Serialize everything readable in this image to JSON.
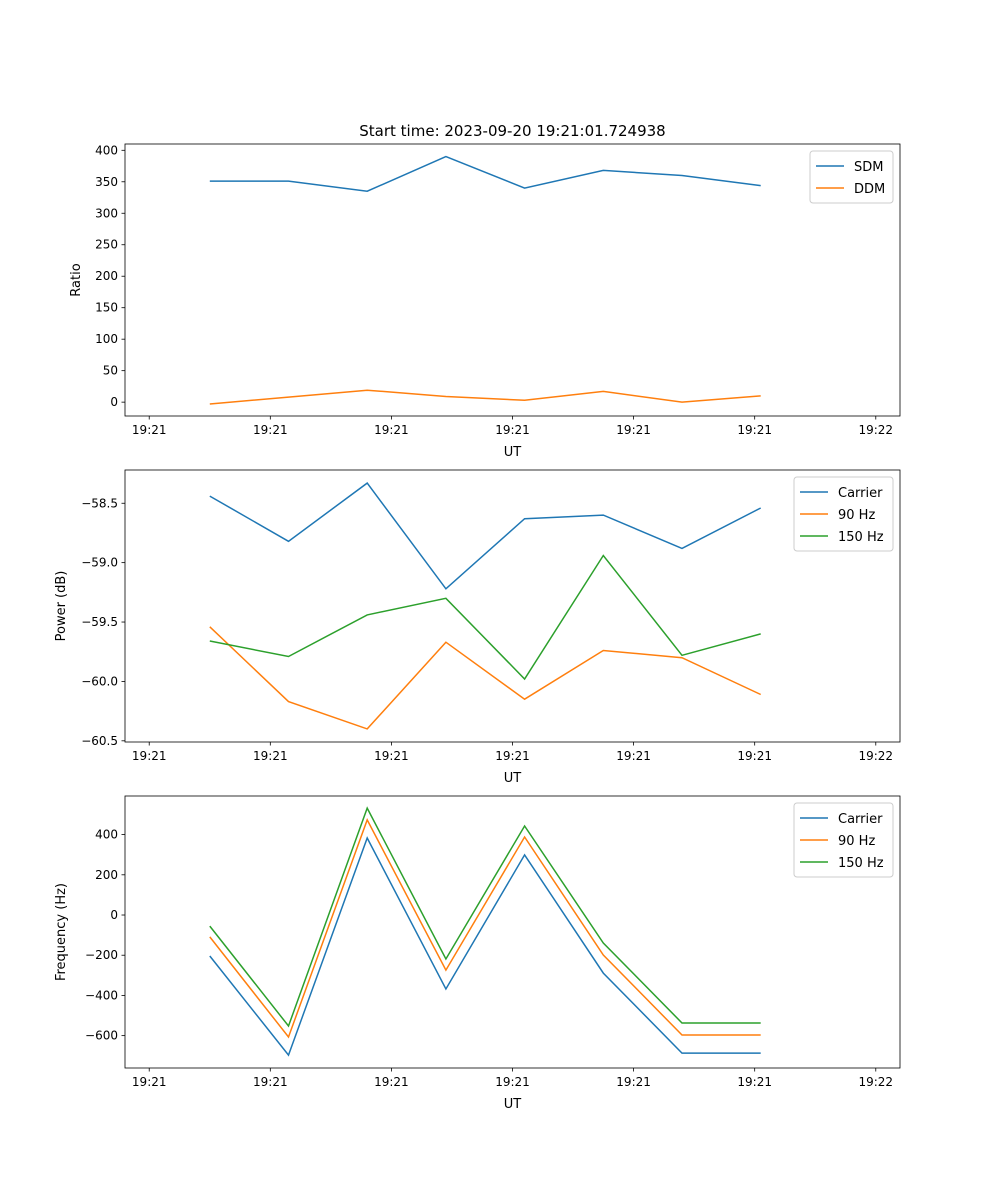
{
  "chart_data": [
    {
      "type": "line",
      "title": "Start time: 2023-09-20 19:21:01.724938",
      "xlabel": "UT",
      "ylabel": "Ratio",
      "x_seconds": [
        5,
        11.5,
        18,
        24.5,
        31,
        37.5,
        44,
        50.5
      ],
      "xlim": [
        -2,
        62
      ],
      "x_ticks": [
        0,
        10,
        20,
        30,
        40,
        50,
        60
      ],
      "x_tick_labels": [
        "19:21",
        "19:21",
        "19:21",
        "19:21",
        "19:21",
        "19:21",
        "19:22"
      ],
      "ylim": [
        -22,
        410
      ],
      "y_ticks": [
        0,
        50,
        100,
        150,
        200,
        250,
        300,
        350,
        400
      ],
      "y_tick_labels": [
        "0",
        "50",
        "100",
        "150",
        "200",
        "250",
        "300",
        "350",
        "400"
      ],
      "legend": "top-right",
      "series": [
        {
          "name": "SDM",
          "color": "#1f77b4",
          "values": [
            351,
            351,
            335,
            390,
            340,
            368,
            360,
            344
          ]
        },
        {
          "name": "DDM",
          "color": "#ff7f0e",
          "values": [
            -3,
            8,
            19,
            9,
            3,
            17,
            0,
            10
          ]
        }
      ]
    },
    {
      "type": "line",
      "xlabel": "UT",
      "ylabel": "Power (dB)",
      "x_seconds": [
        5,
        11.5,
        18,
        24.5,
        31,
        37.5,
        44,
        50.5
      ],
      "xlim": [
        -2,
        62
      ],
      "x_ticks": [
        0,
        10,
        20,
        30,
        40,
        50,
        60
      ],
      "x_tick_labels": [
        "19:21",
        "19:21",
        "19:21",
        "19:21",
        "19:21",
        "19:21",
        "19:22"
      ],
      "ylim": [
        -60.51,
        -58.22
      ],
      "y_ticks": [
        -58.5,
        -59.0,
        -59.5,
        -60.0,
        -60.5
      ],
      "y_tick_labels": [
        "−58.5",
        "−59.0",
        "−59.5",
        "−60.0",
        "−60.5"
      ],
      "legend": "top-right",
      "series": [
        {
          "name": "Carrier",
          "color": "#1f77b4",
          "values": [
            -58.44,
            -58.82,
            -58.33,
            -59.22,
            -58.63,
            -58.6,
            -58.88,
            -58.54
          ]
        },
        {
          "name": "90 Hz",
          "color": "#ff7f0e",
          "values": [
            -59.54,
            -60.17,
            -60.4,
            -59.67,
            -60.15,
            -59.74,
            -59.8,
            -60.11
          ]
        },
        {
          "name": "150 Hz",
          "color": "#2ca02c",
          "values": [
            -59.66,
            -59.79,
            -59.44,
            -59.3,
            -59.98,
            -58.94,
            -59.78,
            -59.6
          ]
        }
      ]
    },
    {
      "type": "line",
      "xlabel": "UT",
      "ylabel": "Frequency (Hz)",
      "x_seconds": [
        5,
        11.5,
        18,
        24.5,
        31,
        37.5,
        44,
        50.5
      ],
      "xlim": [
        -2,
        62
      ],
      "x_ticks": [
        0,
        10,
        20,
        30,
        40,
        50,
        60
      ],
      "x_tick_labels": [
        "19:21",
        "19:21",
        "19:21",
        "19:21",
        "19:21",
        "19:21",
        "19:22"
      ],
      "ylim": [
        -761,
        592
      ],
      "y_ticks": [
        400,
        200,
        0,
        -200,
        -400,
        -600
      ],
      "y_tick_labels": [
        "400",
        "200",
        "0",
        "−200",
        "−400",
        "−600"
      ],
      "legend": "top-right",
      "series": [
        {
          "name": "Carrier",
          "color": "#1f77b4",
          "values": [
            -204,
            -697,
            383,
            -368,
            299,
            -289,
            -687,
            -687
          ]
        },
        {
          "name": "90 Hz",
          "color": "#ff7f0e",
          "values": [
            -109,
            -607,
            473,
            -274,
            388,
            -199,
            -597,
            -597
          ]
        },
        {
          "name": "150 Hz",
          "color": "#2ca02c",
          "values": [
            -55,
            -552,
            532,
            -219,
            443,
            -139,
            -537,
            -537
          ]
        }
      ]
    }
  ]
}
